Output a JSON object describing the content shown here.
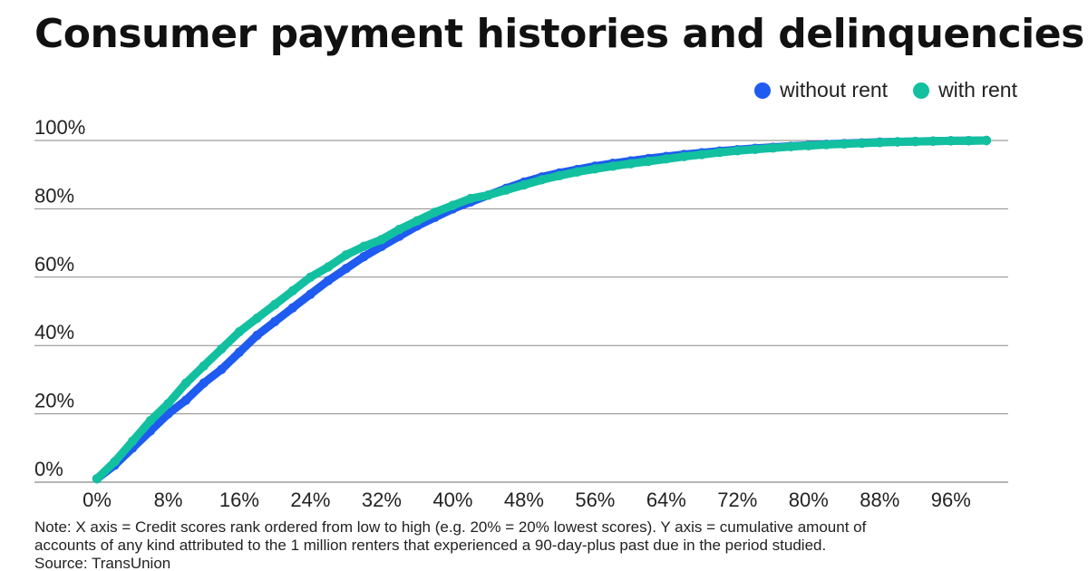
{
  "title": "Consumer payment histories and delinquencies",
  "legend": [
    {
      "label": "without rent",
      "color": "#1f5bf0"
    },
    {
      "label": "with rent",
      "color": "#12c0a0"
    }
  ],
  "note": {
    "line1": "Note: X axis = Credit scores rank ordered from low to high (e.g. 20% = 20% lowest scores). Y axis = cumulative amount of",
    "line2": "accounts of any kind attributed to the 1 million renters that experienced a 90-day-plus past due in the period studied.",
    "source": "Source: TransUnion"
  },
  "chart_data": {
    "type": "line",
    "xlim": [
      0,
      100
    ],
    "ylim": [
      0,
      100
    ],
    "x_ticks": [
      {
        "value": 0,
        "label": "0%"
      },
      {
        "value": 8,
        "label": "8%"
      },
      {
        "value": 16,
        "label": "16%"
      },
      {
        "value": 24,
        "label": "24%"
      },
      {
        "value": 32,
        "label": "32%"
      },
      {
        "value": 40,
        "label": "40%"
      },
      {
        "value": 48,
        "label": "48%"
      },
      {
        "value": 56,
        "label": "56%"
      },
      {
        "value": 64,
        "label": "64%"
      },
      {
        "value": 72,
        "label": "72%"
      },
      {
        "value": 80,
        "label": "80%"
      },
      {
        "value": 88,
        "label": "88%"
      },
      {
        "value": 96,
        "label": "96%"
      }
    ],
    "y_ticks": [
      {
        "value": 0,
        "label": "0%"
      },
      {
        "value": 20,
        "label": "20%"
      },
      {
        "value": 40,
        "label": "40%"
      },
      {
        "value": 60,
        "label": "60%"
      },
      {
        "value": 80,
        "label": "80%"
      },
      {
        "value": 100,
        "label": "100%"
      }
    ],
    "grid": "horizontal",
    "legend_position": "top-right",
    "series": [
      {
        "name": "without rent",
        "color": "#1f5bf0",
        "x": [
          0,
          2,
          4,
          6,
          8,
          10,
          12,
          14,
          16,
          18,
          20,
          22,
          24,
          26,
          28,
          30,
          32,
          34,
          36,
          38,
          40,
          42,
          44,
          46,
          48,
          50,
          52,
          54,
          56,
          58,
          60,
          62,
          64,
          66,
          68,
          70,
          72,
          74,
          76,
          78,
          80,
          82,
          84,
          86,
          88,
          90,
          92,
          94,
          96,
          98,
          100
        ],
        "y": [
          1,
          5,
          10,
          15,
          20,
          24,
          29,
          33,
          38,
          43,
          47,
          51,
          55,
          59,
          62.5,
          66,
          69,
          72,
          75,
          77.5,
          80,
          82,
          84,
          86,
          87.8,
          89.3,
          90.5,
          91.5,
          92.5,
          93.3,
          94,
          94.7,
          95.3,
          95.9,
          96.4,
          96.9,
          97.3,
          97.7,
          98,
          98.3,
          98.6,
          98.9,
          99.1,
          99.3,
          99.5,
          99.6,
          99.7,
          99.8,
          99.9,
          99.95,
          100
        ]
      },
      {
        "name": "with rent",
        "color": "#12c0a0",
        "x": [
          0,
          2,
          4,
          6,
          8,
          10,
          12,
          14,
          16,
          18,
          20,
          22,
          24,
          26,
          28,
          30,
          32,
          34,
          36,
          38,
          40,
          42,
          44,
          46,
          48,
          50,
          52,
          54,
          56,
          58,
          60,
          62,
          64,
          66,
          68,
          70,
          72,
          74,
          76,
          78,
          80,
          82,
          84,
          86,
          88,
          90,
          92,
          94,
          96,
          98,
          100
        ],
        "y": [
          1,
          6,
          12,
          18,
          23,
          29,
          34,
          39,
          44,
          48,
          52,
          56,
          60,
          63,
          66.5,
          69,
          71,
          74,
          76.5,
          79,
          81,
          83,
          84,
          85.5,
          87,
          88.5,
          89.7,
          90.8,
          91.7,
          92.5,
          93.2,
          93.9,
          94.6,
          95.3,
          95.9,
          96.5,
          97,
          97.4,
          97.8,
          98.2,
          98.5,
          98.8,
          99,
          99.2,
          99.4,
          99.6,
          99.7,
          99.8,
          99.9,
          99.95,
          100
        ]
      }
    ]
  }
}
